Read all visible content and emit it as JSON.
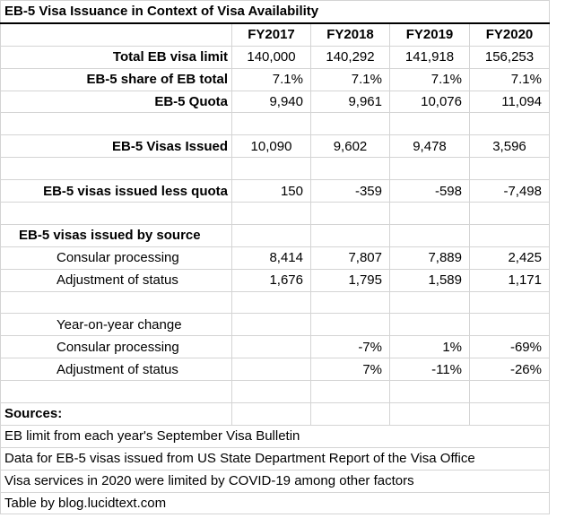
{
  "title": "EB-5 Visa Issuance in Context of Visa Availability",
  "years": [
    "FY2017",
    "FY2018",
    "FY2019",
    "FY2020"
  ],
  "rows": {
    "total_limit": {
      "label": "Total EB visa limit",
      "values": [
        "140,000",
        "140,292",
        "141,918",
        "156,253"
      ]
    },
    "share": {
      "label": "EB-5 share of EB total",
      "values": [
        "7.1%",
        "7.1%",
        "7.1%",
        "7.1%"
      ]
    },
    "quota": {
      "label": "EB-5 Quota",
      "values": [
        "9,940",
        "9,961",
        "10,076",
        "11,094"
      ]
    },
    "issued": {
      "label": "EB-5 Visas Issued",
      "values": [
        "10,090",
        "9,602",
        "9,478",
        "3,596"
      ]
    },
    "less_quota": {
      "label": "EB-5 visas issued less quota",
      "values": [
        "150",
        "-359",
        "-598",
        "-7,498"
      ]
    },
    "by_source_header": {
      "label": "EB-5 visas issued by source"
    },
    "consular": {
      "label": "Consular processing",
      "values": [
        "8,414",
        "7,807",
        "7,889",
        "2,425"
      ]
    },
    "adjustment": {
      "label": "Adjustment of status",
      "values": [
        "1,676",
        "1,795",
        "1,589",
        "1,171"
      ]
    },
    "yoy_header": {
      "label": "Year-on-year change"
    },
    "yoy_consular": {
      "label": "Consular processing",
      "values": [
        "",
        "-7%",
        "1%",
        "-69%"
      ]
    },
    "yoy_adjustment": {
      "label": "Adjustment of status",
      "values": [
        "",
        "7%",
        "-11%",
        "-26%"
      ]
    }
  },
  "notes": {
    "sources_label": "Sources:",
    "lines": [
      "EB limit from each year's September Visa Bulletin",
      "Data for EB-5 visas issued from US State Department Report of the Visa Office",
      "Visa services in 2020 were limited by COVID-19 among other factors",
      "Table by blog.lucidtext.com"
    ]
  }
}
